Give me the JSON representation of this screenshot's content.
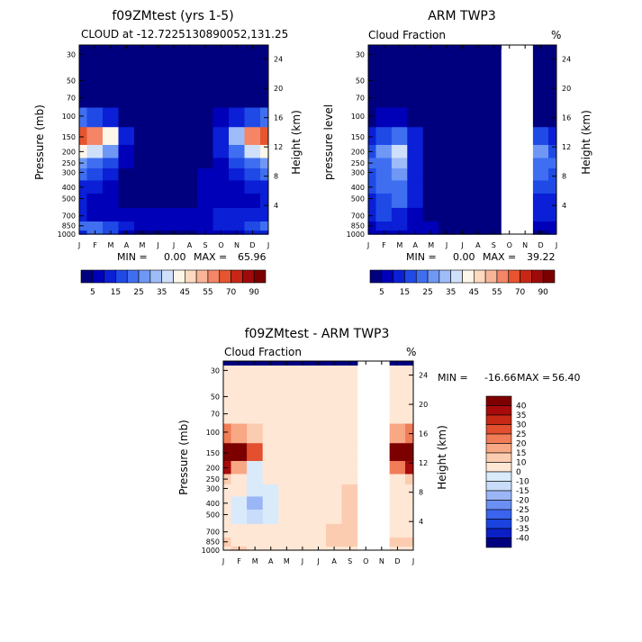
{
  "colors": {
    "nodata": "#ffffff",
    "abs_scale": [
      "#00007f",
      "#0000b8",
      "#0a1fd6",
      "#1f4ae6",
      "#3f6ff0",
      "#6f98f5",
      "#9dbcf8",
      "#cfe0fa",
      "#fff6ea",
      "#fcd9bf",
      "#f8b598",
      "#f48567",
      "#e6552f",
      "#c82715",
      "#a10a0a",
      "#7a0000"
    ],
    "diff_scale": [
      "#00007f",
      "#0a1fc4",
      "#1b43e0",
      "#3a64ee",
      "#6b8ff3",
      "#9ab6f7",
      "#c9dcfa",
      "#d9ebfb",
      "#ffe7d6",
      "#fcccb0",
      "#f8a884",
      "#f07d58",
      "#e2502f",
      "#c72916",
      "#a70b0b",
      "#7d0000"
    ]
  },
  "labels": {
    "fraction_unit": "%",
    "height_axis": "Height (km)",
    "pressure_axis": "Pressure (mb)",
    "pressure_level_axis": "pressure level",
    "min_label": "MIN =",
    "max_label": "MAX ="
  },
  "chart_data": [
    {
      "id": "model",
      "type": "heatmap",
      "title": "f09ZMtest (yrs 1-5)",
      "subtitle": "CLOUD at -12.7225130890052,131.25",
      "ylabel": "Pressure (mb)",
      "y2label": "Height (km)",
      "min": "0.00",
      "max": "65.96",
      "months": [
        "J",
        "F",
        "M",
        "A",
        "M",
        "J",
        "J",
        "A",
        "S",
        "O",
        "N",
        "D",
        "J"
      ],
      "pressure_ticks": [
        30,
        50,
        70,
        100,
        150,
        200,
        250,
        300,
        400,
        500,
        700,
        850,
        1000
      ],
      "height_ticks": [
        24,
        20,
        16,
        12,
        8,
        4
      ],
      "colorbar_levels": [
        5,
        10,
        15,
        20,
        25,
        30,
        35,
        40,
        45,
        50,
        55,
        60,
        70,
        80,
        90
      ],
      "colorbar_labels": [
        "5",
        "15",
        "25",
        "35",
        "45",
        "55",
        "70",
        "90"
      ],
      "levels_hpa": [
        1000,
        850,
        700,
        500,
        400,
        300,
        250,
        200,
        150,
        100,
        70,
        50,
        30
      ],
      "values": [
        [
          12,
          20,
          16,
          6,
          4,
          3,
          3,
          4,
          5,
          6,
          8,
          10,
          12
        ],
        [
          20,
          24,
          16,
          10,
          8,
          6,
          6,
          8,
          9,
          10,
          12,
          16,
          20
        ],
        [
          12,
          9,
          7,
          5,
          5,
          5,
          5,
          6,
          8,
          10,
          12,
          12,
          12
        ],
        [
          10,
          8,
          7,
          4,
          2,
          2,
          2,
          3,
          5,
          6,
          8,
          9,
          10
        ],
        [
          12,
          10,
          8,
          3,
          2,
          2,
          2,
          3,
          5,
          7,
          9,
          11,
          12
        ],
        [
          20,
          17,
          12,
          4,
          2,
          2,
          2,
          3,
          5,
          8,
          12,
          17,
          20
        ],
        [
          26,
          23,
          17,
          5,
          2,
          2,
          2,
          2,
          4,
          8,
          15,
          23,
          26
        ],
        [
          44,
          38,
          28,
          8,
          3,
          2,
          2,
          2,
          4,
          10,
          24,
          38,
          44
        ],
        [
          66,
          58,
          42,
          12,
          3,
          2,
          2,
          2,
          4,
          14,
          34,
          58,
          66
        ],
        [
          20,
          16,
          11,
          4,
          1,
          1,
          1,
          1,
          2,
          5,
          10,
          16,
          20
        ],
        [
          3,
          2,
          1,
          0,
          0,
          0,
          0,
          0,
          0,
          1,
          2,
          3,
          3
        ],
        [
          0,
          0,
          0,
          0,
          0,
          0,
          0,
          0,
          0,
          0,
          0,
          0,
          0
        ],
        [
          0,
          0,
          0,
          0,
          0,
          0,
          0,
          0,
          0,
          0,
          0,
          0,
          0
        ]
      ]
    },
    {
      "id": "obs",
      "type": "heatmap",
      "title": "ARM TWP3",
      "subtitle": "Cloud Fraction",
      "unit": "%",
      "ylabel": "pressure level",
      "y2label": "Height (km)",
      "min": "0.00",
      "max": "39.22",
      "months": [
        "J",
        "F",
        "M",
        "A",
        "M",
        "J",
        "J",
        "A",
        "S",
        "O",
        "N",
        "D",
        "J"
      ],
      "pressure_ticks": [
        30,
        50,
        70,
        100,
        150,
        200,
        250,
        300,
        400,
        500,
        700,
        850,
        1000
      ],
      "height_ticks": [
        24,
        20,
        16,
        12,
        8,
        4
      ],
      "colorbar_levels": [
        5,
        10,
        15,
        20,
        25,
        30,
        35,
        40,
        45,
        50,
        55,
        60,
        70,
        80,
        90
      ],
      "colorbar_labels": [
        "5",
        "15",
        "25",
        "35",
        "45",
        "55",
        "70",
        "90"
      ],
      "missing_months": [
        9,
        10
      ],
      "levels_hpa": [
        1000,
        850,
        700,
        500,
        400,
        300,
        250,
        200,
        150,
        100,
        70,
        50,
        30
      ],
      "values": [
        [
          6,
          8,
          8,
          6,
          6,
          4,
          3,
          3,
          3,
          null,
          null,
          4,
          6
        ],
        [
          8,
          14,
          10,
          8,
          6,
          4,
          3,
          3,
          3,
          null,
          null,
          6,
          8
        ],
        [
          12,
          16,
          14,
          8,
          4,
          2,
          2,
          2,
          2,
          null,
          null,
          12,
          12
        ],
        [
          14,
          18,
          20,
          12,
          2,
          1,
          1,
          1,
          1,
          null,
          null,
          14,
          14
        ],
        [
          16,
          20,
          24,
          14,
          2,
          1,
          1,
          1,
          1,
          null,
          null,
          16,
          16
        ],
        [
          18,
          22,
          26,
          14,
          2,
          1,
          1,
          1,
          1,
          null,
          null,
          20,
          18
        ],
        [
          20,
          24,
          32,
          14,
          2,
          1,
          1,
          1,
          1,
          null,
          null,
          24,
          20
        ],
        [
          18,
          26,
          39,
          14,
          2,
          1,
          1,
          1,
          1,
          null,
          null,
          26,
          18
        ],
        [
          12,
          18,
          22,
          10,
          2,
          1,
          1,
          1,
          1,
          null,
          null,
          16,
          12
        ],
        [
          4,
          8,
          8,
          4,
          1,
          0,
          0,
          0,
          0,
          null,
          null,
          4,
          4
        ],
        [
          0,
          1,
          1,
          1,
          0,
          0,
          0,
          0,
          0,
          null,
          null,
          0,
          0
        ],
        [
          0,
          0,
          0,
          0,
          0,
          0,
          0,
          0,
          0,
          null,
          null,
          0,
          0
        ],
        [
          0,
          0,
          0,
          0,
          0,
          0,
          0,
          0,
          0,
          null,
          null,
          0,
          0
        ]
      ]
    },
    {
      "id": "diff",
      "type": "heatmap",
      "title": "f09ZMtest - ARM TWP3",
      "subtitle": "Cloud Fraction",
      "unit": "%",
      "ylabel": "Pressure (mb)",
      "y2label": "Height (km)",
      "min": "-16.66",
      "max": "56.40",
      "months": [
        "J",
        "F",
        "M",
        "A",
        "M",
        "J",
        "J",
        "A",
        "S",
        "O",
        "N",
        "D",
        "J"
      ],
      "pressure_ticks": [
        30,
        50,
        70,
        100,
        150,
        200,
        250,
        300,
        400,
        500,
        700,
        850,
        1000
      ],
      "height_ticks": [
        24,
        20,
        16,
        12,
        8,
        4
      ],
      "colorbar_levels": [
        -40,
        -35,
        -30,
        -25,
        -20,
        -15,
        -10,
        -5,
        5,
        10,
        15,
        20,
        25,
        30,
        35,
        40
      ],
      "colorbar_labels": [
        "40",
        "35",
        "30",
        "25",
        "20",
        "15",
        "10",
        "0",
        "-10",
        "-15",
        "-20",
        "-25",
        "-30",
        "-35",
        "-40"
      ],
      "missing_months": [
        9,
        10
      ],
      "levels_hpa": [
        1000,
        850,
        700,
        500,
        400,
        300,
        250,
        200,
        150,
        100,
        70,
        50,
        30
      ],
      "values": [
        [
          3,
          6,
          4,
          2,
          1,
          1,
          1,
          2,
          3,
          null,
          null,
          3,
          3
        ],
        [
          6,
          4,
          2,
          -2,
          1,
          3,
          4,
          6,
          6,
          null,
          null,
          5,
          6
        ],
        [
          1,
          -2,
          -4,
          -3,
          1,
          3,
          4,
          6,
          8,
          null,
          null,
          1,
          1
        ],
        [
          -4,
          -6,
          -12,
          -6,
          2,
          3,
          3,
          4,
          6,
          null,
          null,
          -4,
          -4
        ],
        [
          -3,
          -8,
          -17,
          -8,
          1,
          2,
          2,
          3,
          5,
          null,
          null,
          -3,
          -3
        ],
        [
          2,
          -4,
          -10,
          -6,
          1,
          2,
          2,
          3,
          5,
          null,
          null,
          1,
          2
        ],
        [
          6,
          0,
          -8,
          -4,
          1,
          2,
          2,
          3,
          4,
          null,
          null,
          2,
          6
        ],
        [
          30,
          12,
          -6,
          -4,
          2,
          2,
          2,
          3,
          4,
          null,
          null,
          16,
          30
        ],
        [
          56,
          42,
          20,
          4,
          2,
          2,
          2,
          3,
          4,
          null,
          null,
          40,
          56
        ],
        [
          18,
          12,
          6,
          2,
          0,
          0,
          0,
          0,
          2,
          null,
          null,
          12,
          18
        ],
        [
          3,
          2,
          1,
          0,
          0,
          0,
          0,
          0,
          1,
          null,
          null,
          3,
          3
        ],
        [
          0,
          0,
          0,
          0,
          0,
          0,
          0,
          0,
          0,
          null,
          null,
          0,
          0
        ],
        [
          0,
          0,
          0,
          0,
          0,
          0,
          0,
          0,
          0,
          null,
          null,
          0,
          0
        ]
      ]
    }
  ]
}
